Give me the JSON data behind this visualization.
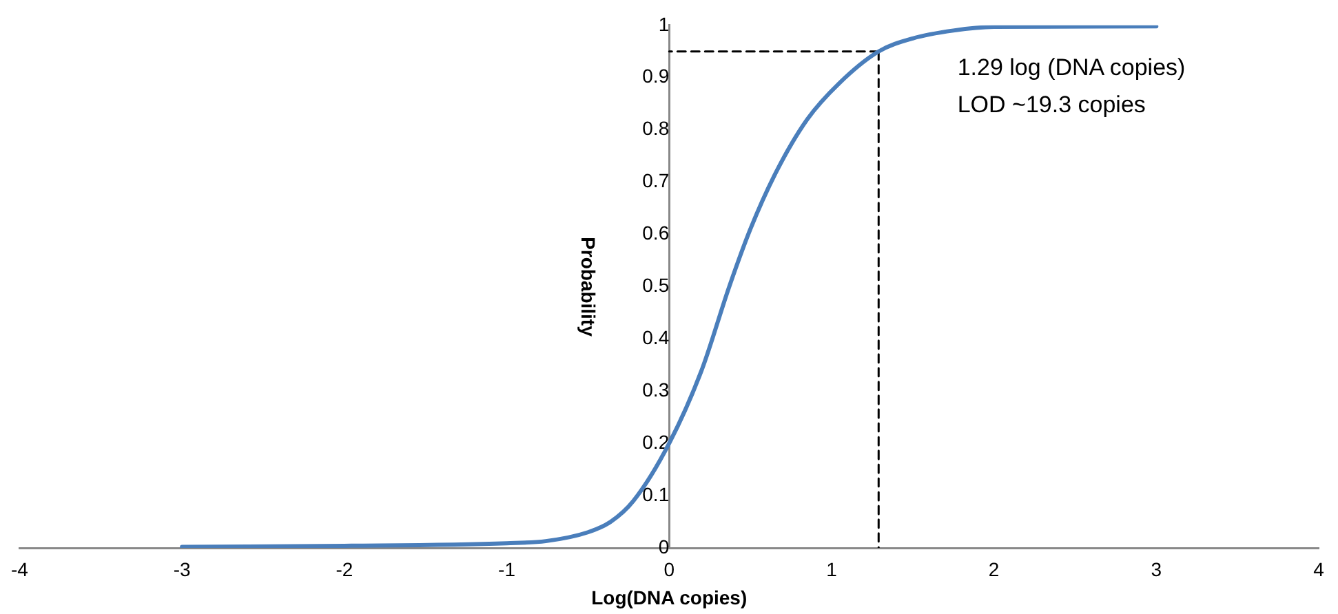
{
  "chart_data": {
    "type": "line",
    "xlabel": "Log(DNA copies)",
    "ylabel": "Probability",
    "xlim": [
      -4,
      4
    ],
    "xticks": [
      -4,
      -3,
      -2,
      -1,
      0,
      1,
      2,
      3,
      4
    ],
    "ylim": [
      0,
      1
    ],
    "yticks": [
      0,
      0.1,
      0.2,
      0.3,
      0.4,
      0.5,
      0.6,
      0.7,
      0.8,
      0.9,
      1
    ],
    "grid": false,
    "legend": false,
    "marker": "none",
    "series": [
      {
        "color": "#4a7ebb",
        "line_style": "solid",
        "x": [
          -3,
          -2,
          -1,
          -0.76,
          -0.5,
          -0.36,
          -0.22,
          0,
          0.2,
          0.37,
          0.5,
          0.66,
          0.85,
          1.05,
          1.29,
          1.5,
          1.75,
          2,
          3
        ],
        "values": [
          0.002,
          0.004,
          0.009,
          0.013,
          0.03,
          0.05,
          0.09,
          0.2,
          0.34,
          0.5,
          0.61,
          0.72,
          0.82,
          0.89,
          0.95,
          0.975,
          0.99,
          0.997,
          0.998
        ]
      },
      {
        "color": "#000000",
        "line_style": "dashed",
        "x": [
          1.29,
          0
        ],
        "values": [
          0.95,
          0.95
        ]
      },
      {
        "color": "#000000",
        "line_style": "dashed",
        "x": [
          1.29,
          1.29
        ],
        "values": [
          0.95,
          0
        ]
      }
    ],
    "annotations": [
      "1.29 log (DNA copies)",
      "LOD ~19.3 copies"
    ]
  }
}
